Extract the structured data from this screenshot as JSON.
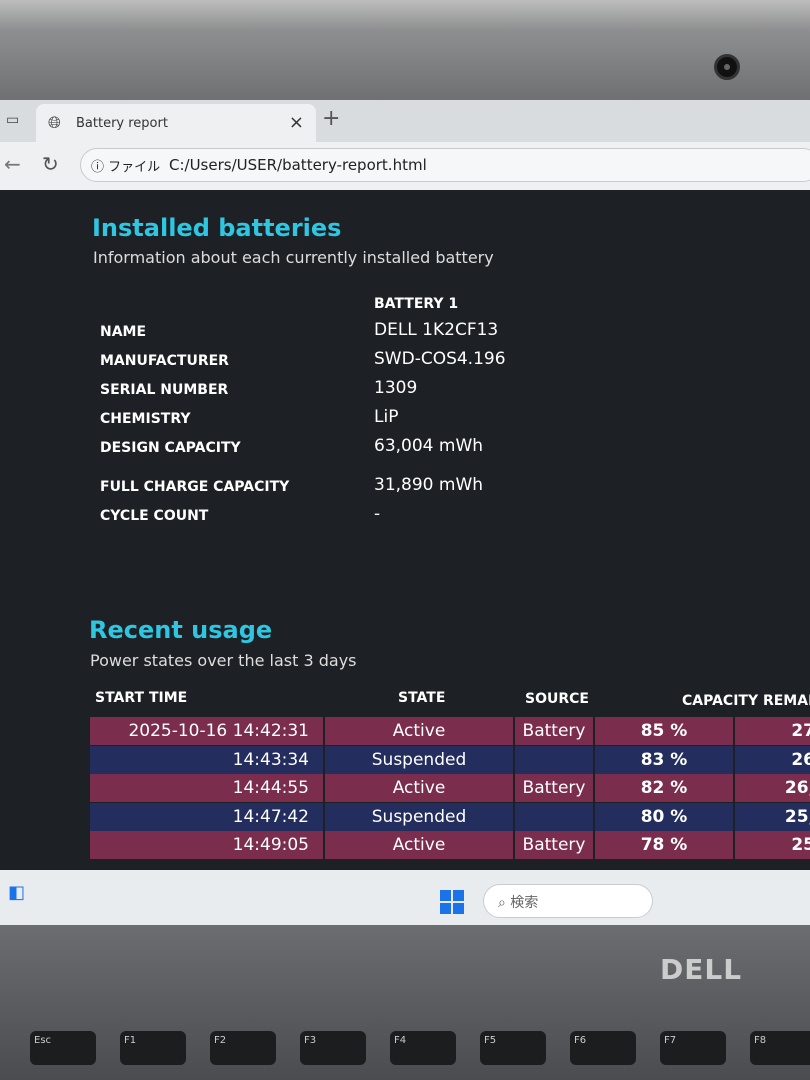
{
  "browser": {
    "tab_title": "Battery report",
    "url_label": "ファイル",
    "url": "C:/Users/USER/battery-report.html"
  },
  "installed": {
    "title": "Installed batteries",
    "subtitle": "Information about each currently installed battery",
    "column": "BATTERY 1",
    "fields": [
      {
        "label": "NAME",
        "value": "DELL 1K2CF13"
      },
      {
        "label": "MANUFACTURER",
        "value": "SWD-COS4.196"
      },
      {
        "label": "SERIAL NUMBER",
        "value": "1309"
      },
      {
        "label": "CHEMISTRY",
        "value": "LiP"
      },
      {
        "label": "DESIGN CAPACITY",
        "value": "63,004 mWh"
      },
      {
        "label": "FULL CHARGE CAPACITY",
        "value": "31,890 mWh"
      },
      {
        "label": "CYCLE COUNT",
        "value": "-"
      }
    ]
  },
  "recent": {
    "title": "Recent usage",
    "subtitle": "Power states over the last 3 days",
    "headers": {
      "start": "START TIME",
      "state": "STATE",
      "source": "SOURCE",
      "capacity": "CAPACITY REMAI"
    },
    "rows": [
      {
        "start": "2025-10-16  14:42:31",
        "state": "Active",
        "source": "Battery",
        "pct": "85 %",
        "mwh": "27"
      },
      {
        "start": "14:43:34",
        "state": "Suspended",
        "source": "",
        "pct": "83 %",
        "mwh": "26"
      },
      {
        "start": "14:44:55",
        "state": "Active",
        "source": "Battery",
        "pct": "82 %",
        "mwh": "26,"
      },
      {
        "start": "14:47:42",
        "state": "Suspended",
        "source": "",
        "pct": "80 %",
        "mwh": "25,"
      },
      {
        "start": "14:49:05",
        "state": "Active",
        "source": "Battery",
        "pct": "78 %",
        "mwh": "25"
      }
    ]
  },
  "taskbar": {
    "search": "検索"
  },
  "laptop": {
    "brand": "DELL",
    "keys": [
      "Esc",
      "F1",
      "F2",
      "F3",
      "F4",
      "F5",
      "F6",
      "F7",
      "F8"
    ]
  },
  "colors": {
    "heading": "#2ec6e0",
    "row_active": "#7b2d4e",
    "row_suspended": "#232d5e"
  }
}
